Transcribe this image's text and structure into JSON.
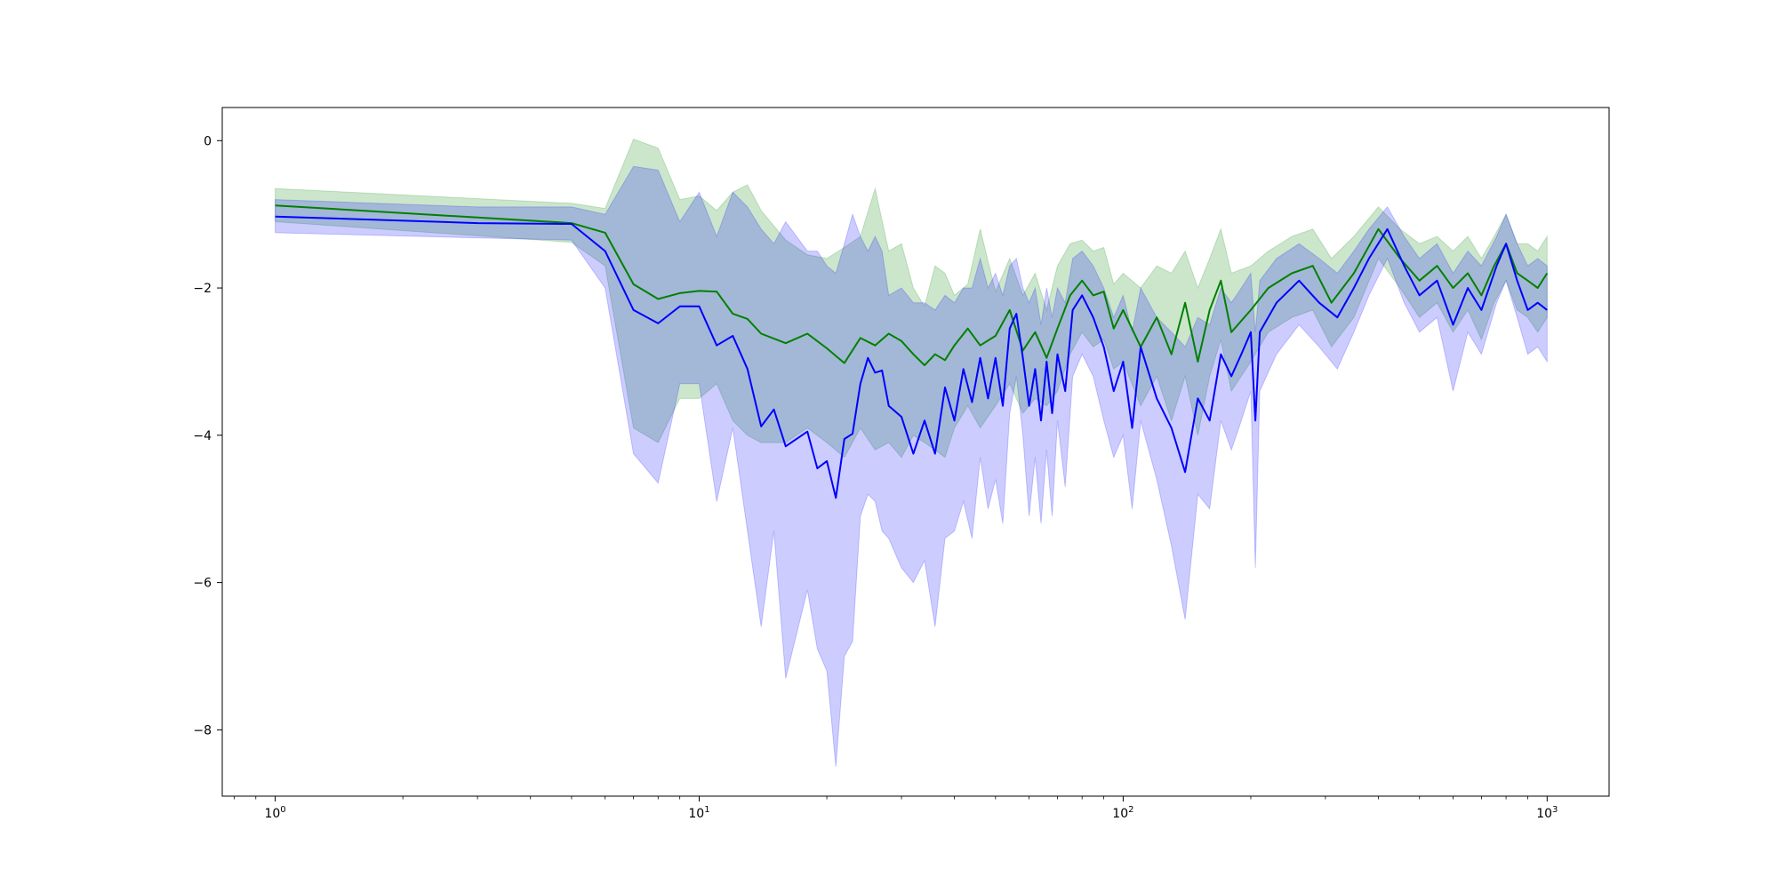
{
  "chart_data": {
    "type": "line",
    "title": "",
    "xlabel": "",
    "ylabel": "",
    "x_scale": "log",
    "xlim": [
      0.75,
      1400
    ],
    "ylim": [
      -8.9,
      0.45
    ],
    "grid": false,
    "legend": "none",
    "x_ticks": [
      {
        "value": 1,
        "base": "10",
        "exp": "0"
      },
      {
        "value": 10,
        "base": "10",
        "exp": "1"
      },
      {
        "value": 100,
        "base": "10",
        "exp": "2"
      },
      {
        "value": 1000,
        "base": "10",
        "exp": "3"
      }
    ],
    "y_ticks": [
      {
        "value": 0,
        "label": "0"
      },
      {
        "value": -2,
        "label": "−2"
      },
      {
        "value": -4,
        "label": "−4"
      },
      {
        "value": -6,
        "label": "−6"
      },
      {
        "value": -8,
        "label": "−8"
      }
    ],
    "series": [
      {
        "color": "#008000",
        "band_color": "#008000",
        "band_opacity": 0.2,
        "points": [
          [
            1,
            -0.88,
            -0.65,
            -1.1
          ],
          [
            5,
            -1.12,
            -0.85,
            -1.38
          ],
          [
            6,
            -1.25,
            -0.92,
            -1.7
          ],
          [
            7,
            -1.95,
            0.02,
            -3.9
          ],
          [
            8,
            -2.15,
            -0.1,
            -4.1
          ],
          [
            9,
            -2.07,
            -0.8,
            -3.5
          ],
          [
            10,
            -2.04,
            -0.75,
            -3.5
          ],
          [
            11,
            -2.05,
            -0.95,
            -3.3
          ],
          [
            12,
            -2.35,
            -0.7,
            -3.8
          ],
          [
            13,
            -2.42,
            -0.6,
            -4.0
          ],
          [
            14,
            -2.62,
            -0.95,
            -4.1
          ],
          [
            16,
            -2.75,
            -1.35,
            -4.1
          ],
          [
            18,
            -2.62,
            -1.55,
            -3.9
          ],
          [
            20,
            -2.82,
            -1.6,
            -4.1
          ],
          [
            22,
            -3.02,
            -1.45,
            -4.3
          ],
          [
            24,
            -2.68,
            -1.3,
            -3.9
          ],
          [
            26,
            -2.78,
            -0.65,
            -4.2
          ],
          [
            28,
            -2.62,
            -1.5,
            -4.1
          ],
          [
            30,
            -2.72,
            -1.4,
            -4.3
          ],
          [
            32,
            -2.9,
            -2.0,
            -4.0
          ],
          [
            34,
            -3.05,
            -2.25,
            -4.1
          ],
          [
            36,
            -2.9,
            -1.7,
            -4.2
          ],
          [
            38,
            -2.98,
            -1.8,
            -4.3
          ],
          [
            40,
            -2.78,
            -2.1,
            -3.9
          ],
          [
            43,
            -2.55,
            -1.95,
            -3.6
          ],
          [
            46,
            -2.78,
            -1.2,
            -3.9
          ],
          [
            50,
            -2.65,
            -2.05,
            -3.6
          ],
          [
            54,
            -2.3,
            -1.6,
            -3.3
          ],
          [
            58,
            -2.85,
            -2.1,
            -3.7
          ],
          [
            62,
            -2.6,
            -1.8,
            -3.5
          ],
          [
            66,
            -2.95,
            -2.3,
            -3.6
          ],
          [
            70,
            -2.55,
            -1.7,
            -3.4
          ],
          [
            75,
            -2.1,
            -1.4,
            -2.9
          ],
          [
            80,
            -1.9,
            -1.35,
            -2.6
          ],
          [
            85,
            -2.1,
            -1.5,
            -2.8
          ],
          [
            90,
            -2.05,
            -1.45,
            -2.7
          ],
          [
            95,
            -2.55,
            -1.95,
            -3.1
          ],
          [
            100,
            -2.3,
            -1.8,
            -3.0
          ],
          [
            110,
            -2.8,
            -2.0,
            -3.6
          ],
          [
            120,
            -2.4,
            -1.7,
            -3.2
          ],
          [
            130,
            -2.9,
            -1.8,
            -3.8
          ],
          [
            140,
            -2.2,
            -1.5,
            -3.2
          ],
          [
            150,
            -3.0,
            -2.0,
            -4.0
          ],
          [
            160,
            -2.3,
            -1.6,
            -3.2
          ],
          [
            170,
            -1.9,
            -1.2,
            -2.7
          ],
          [
            180,
            -2.6,
            -1.8,
            -3.4
          ],
          [
            200,
            -2.3,
            -1.7,
            -3.0
          ],
          [
            220,
            -2.0,
            -1.5,
            -2.6
          ],
          [
            250,
            -1.8,
            -1.3,
            -2.4
          ],
          [
            280,
            -1.7,
            -1.2,
            -2.3
          ],
          [
            310,
            -2.2,
            -1.6,
            -2.8
          ],
          [
            350,
            -1.8,
            -1.3,
            -2.4
          ],
          [
            400,
            -1.2,
            -0.9,
            -1.6
          ],
          [
            450,
            -1.6,
            -1.2,
            -2.0
          ],
          [
            500,
            -1.9,
            -1.4,
            -2.4
          ],
          [
            550,
            -1.7,
            -1.3,
            -2.2
          ],
          [
            600,
            -2.0,
            -1.5,
            -2.6
          ],
          [
            650,
            -1.8,
            -1.3,
            -2.3
          ],
          [
            700,
            -2.1,
            -1.6,
            -2.7
          ],
          [
            750,
            -1.7,
            -1.3,
            -2.2
          ],
          [
            800,
            -1.4,
            -1.0,
            -1.9
          ],
          [
            850,
            -1.8,
            -1.4,
            -2.3
          ],
          [
            900,
            -1.9,
            -1.4,
            -2.4
          ],
          [
            950,
            -2.0,
            -1.5,
            -2.6
          ],
          [
            1000,
            -1.8,
            -1.3,
            -2.4
          ]
        ]
      },
      {
        "color": "#0000ff",
        "band_color": "#0000ff",
        "band_opacity": 0.2,
        "points": [
          [
            1,
            -1.03,
            -0.8,
            -1.25
          ],
          [
            3,
            -1.12,
            -0.9,
            -1.32
          ],
          [
            5,
            -1.13,
            -0.9,
            -1.35
          ],
          [
            6,
            -1.5,
            -1.0,
            -2.0
          ],
          [
            7,
            -2.3,
            -0.35,
            -4.25
          ],
          [
            8,
            -2.48,
            -0.4,
            -4.65
          ],
          [
            9,
            -2.25,
            -1.1,
            -3.3
          ],
          [
            10,
            -2.25,
            -0.7,
            -3.3
          ],
          [
            11,
            -2.78,
            -1.3,
            -4.9
          ],
          [
            12,
            -2.65,
            -0.7,
            -3.9
          ],
          [
            13,
            -3.1,
            -0.9,
            -5.3
          ],
          [
            14,
            -3.88,
            -1.2,
            -6.6
          ],
          [
            15,
            -3.65,
            -1.4,
            -5.3
          ],
          [
            16,
            -4.15,
            -1.1,
            -7.3
          ],
          [
            18,
            -3.95,
            -1.5,
            -6.1
          ],
          [
            19,
            -4.45,
            -1.5,
            -6.9
          ],
          [
            20,
            -4.35,
            -1.7,
            -7.2
          ],
          [
            21,
            -4.85,
            -1.8,
            -8.5
          ],
          [
            22,
            -4.05,
            -1.4,
            -7.0
          ],
          [
            23,
            -3.98,
            -1.0,
            -6.8
          ],
          [
            24,
            -3.3,
            -1.3,
            -5.1
          ],
          [
            25,
            -2.95,
            -1.5,
            -4.8
          ],
          [
            26,
            -3.15,
            -1.3,
            -4.9
          ],
          [
            27,
            -3.12,
            -1.5,
            -5.3
          ],
          [
            28,
            -3.6,
            -2.1,
            -5.4
          ],
          [
            30,
            -3.75,
            -2.0,
            -5.8
          ],
          [
            32,
            -4.25,
            -2.2,
            -6.0
          ],
          [
            34,
            -3.8,
            -2.2,
            -5.7
          ],
          [
            36,
            -4.25,
            -2.3,
            -6.6
          ],
          [
            38,
            -3.35,
            -2.1,
            -5.4
          ],
          [
            40,
            -3.8,
            -2.2,
            -5.3
          ],
          [
            42,
            -3.1,
            -2.0,
            -4.9
          ],
          [
            44,
            -3.55,
            -2.0,
            -5.4
          ],
          [
            46,
            -2.95,
            -1.6,
            -4.3
          ],
          [
            48,
            -3.5,
            -2.0,
            -5.0
          ],
          [
            50,
            -2.95,
            -1.8,
            -4.6
          ],
          [
            52,
            -3.6,
            -2.1,
            -5.2
          ],
          [
            54,
            -2.55,
            -1.7,
            -3.7
          ],
          [
            56,
            -2.35,
            -1.6,
            -3.2
          ],
          [
            58,
            -2.95,
            -2.0,
            -4.0
          ],
          [
            60,
            -3.6,
            -2.2,
            -5.1
          ],
          [
            62,
            -3.1,
            -2.0,
            -4.3
          ],
          [
            64,
            -3.8,
            -2.5,
            -5.2
          ],
          [
            66,
            -3.0,
            -2.0,
            -4.2
          ],
          [
            68,
            -3.7,
            -2.4,
            -5.1
          ],
          [
            70,
            -2.9,
            -2.0,
            -3.8
          ],
          [
            73,
            -3.4,
            -2.2,
            -4.7
          ],
          [
            76,
            -2.3,
            -1.6,
            -3.2
          ],
          [
            80,
            -2.1,
            -1.5,
            -2.9
          ],
          [
            85,
            -2.4,
            -1.7,
            -3.2
          ],
          [
            90,
            -2.8,
            -2.0,
            -3.8
          ],
          [
            95,
            -3.4,
            -2.4,
            -4.3
          ],
          [
            100,
            -3.0,
            -2.1,
            -4.0
          ],
          [
            105,
            -3.9,
            -2.6,
            -5.0
          ],
          [
            110,
            -2.8,
            -2.0,
            -3.8
          ],
          [
            120,
            -3.5,
            -2.4,
            -4.6
          ],
          [
            130,
            -3.9,
            -2.6,
            -5.5
          ],
          [
            140,
            -4.5,
            -2.8,
            -6.5
          ],
          [
            150,
            -3.5,
            -2.4,
            -4.8
          ],
          [
            160,
            -3.8,
            -2.5,
            -5.0
          ],
          [
            170,
            -2.9,
            -2.0,
            -3.8
          ],
          [
            180,
            -3.2,
            -2.2,
            -4.2
          ],
          [
            190,
            -2.9,
            -2.0,
            -3.8
          ],
          [
            200,
            -2.6,
            -1.8,
            -3.4
          ],
          [
            205,
            -3.8,
            -2.6,
            -5.8
          ],
          [
            210,
            -2.6,
            -1.9,
            -3.4
          ],
          [
            230,
            -2.2,
            -1.6,
            -2.9
          ],
          [
            260,
            -1.9,
            -1.4,
            -2.5
          ],
          [
            290,
            -2.2,
            -1.6,
            -2.8
          ],
          [
            320,
            -2.4,
            -1.8,
            -3.1
          ],
          [
            350,
            -2.0,
            -1.5,
            -2.6
          ],
          [
            380,
            -1.6,
            -1.2,
            -2.1
          ],
          [
            420,
            -1.2,
            -0.9,
            -1.6
          ],
          [
            460,
            -1.7,
            -1.3,
            -2.2
          ],
          [
            500,
            -2.1,
            -1.6,
            -2.6
          ],
          [
            550,
            -1.9,
            -1.4,
            -2.4
          ],
          [
            600,
            -2.5,
            -1.8,
            -3.4
          ],
          [
            650,
            -2.0,
            -1.5,
            -2.6
          ],
          [
            700,
            -2.3,
            -1.7,
            -2.9
          ],
          [
            760,
            -1.7,
            -1.3,
            -2.2
          ],
          [
            800,
            -1.4,
            -1.0,
            -1.9
          ],
          [
            850,
            -1.9,
            -1.4,
            -2.4
          ],
          [
            900,
            -2.3,
            -1.7,
            -2.9
          ],
          [
            950,
            -2.2,
            -1.6,
            -2.8
          ],
          [
            1000,
            -2.3,
            -1.7,
            -3.0
          ]
        ]
      }
    ]
  }
}
